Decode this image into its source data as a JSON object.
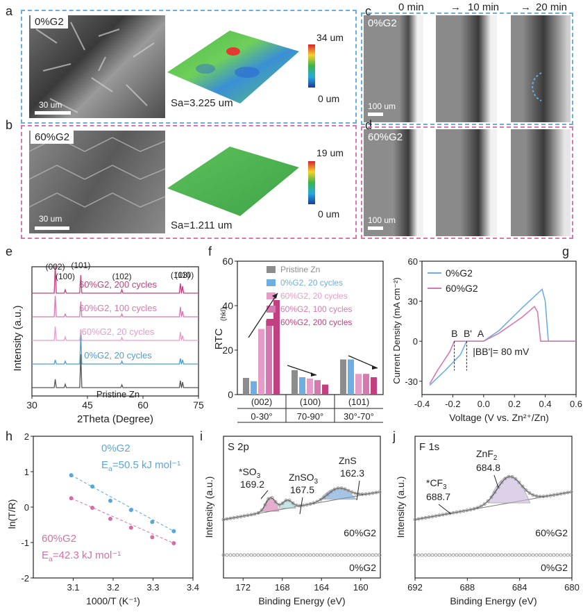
{
  "panels": {
    "a": {
      "letter": "a",
      "tag": "0%G2",
      "scale": "30 um",
      "cb_max": "34 um",
      "cb_min": "0 um",
      "sa": "Sa=3.225 um"
    },
    "b": {
      "letter": "b",
      "tag": "60%G2",
      "scale": "30 um",
      "cb_max": "19 um",
      "cb_min": "0 um",
      "sa": "Sa=1.211 um"
    },
    "c": {
      "letter": "c",
      "tag": "0%G2",
      "scale": "100 um",
      "times": [
        "0 min",
        "10 min",
        "20 min"
      ]
    },
    "d": {
      "letter": "d",
      "tag": "60%G2",
      "scale": "100 um"
    },
    "e": {
      "letter": "e"
    },
    "f": {
      "letter": "f"
    },
    "g": {
      "letter": "g"
    },
    "h": {
      "letter": "h"
    },
    "i": {
      "letter": "i"
    },
    "j": {
      "letter": "j"
    }
  },
  "colors": {
    "blue": "#4a9fd0",
    "pink": "#c85a9a",
    "lightpink": "#e59cc6",
    "magenta": "#c2407f",
    "gray": "#8c8c8c",
    "mid": "#d678b0"
  },
  "chart_data": [
    {
      "id": "e",
      "type": "line",
      "xlabel": "2Theta (Degree)",
      "ylabel": "Intensity (a.u.)",
      "xlim": [
        30,
        75
      ],
      "xticks": [
        "30",
        "45",
        "60",
        "75"
      ],
      "peaks": [
        {
          "label": "(002)",
          "x": 36.3
        },
        {
          "label": "(100)",
          "x": 39.0
        },
        {
          "label": "(101)",
          "x": 43.2
        },
        {
          "label": "(102)",
          "x": 54.3
        },
        {
          "label": "(103)",
          "x": 70.1
        },
        {
          "label": "(110)",
          "x": 70.7
        }
      ],
      "series": [
        {
          "name": "Pristine Zn",
          "color": "#555555"
        },
        {
          "name": "0%G2, 20 cycles",
          "color": "#4a9fd0"
        },
        {
          "name": "60%G2, 20 cycles",
          "color": "#e59cc6"
        },
        {
          "name": "60%G2, 100 cycles",
          "color": "#d678b0"
        },
        {
          "name": "60%G2, 200 cycles",
          "color": "#c2407f"
        }
      ]
    },
    {
      "id": "f",
      "type": "bar",
      "ylabel": "RTC",
      "ylabel_sub": "(hkl)",
      "ylim": [
        0,
        60
      ],
      "yticks": [
        "0",
        "20",
        "40",
        "60"
      ],
      "groups": [
        "(002)",
        "(100)",
        "(101)"
      ],
      "ranges": [
        "0-30°",
        "70-90°",
        "30°-70°"
      ],
      "series": [
        {
          "name": "Pristine Zn",
          "color": "#8c8c8c",
          "values": [
            7.5,
            11,
            15.8
          ]
        },
        {
          "name": "0%G2, 20 cycles",
          "color": "#6eaee0",
          "values": [
            6,
            7.8,
            15.8
          ]
        },
        {
          "name": "60%G2, 20 cycles",
          "color": "#e59cc6",
          "values": [
            29.5,
            7.2,
            9.3
          ]
        },
        {
          "name": "60%G2, 100 cycles",
          "color": "#d678b0",
          "values": [
            33.5,
            6.5,
            9.3
          ]
        },
        {
          "name": "60%G2, 200 cycles",
          "color": "#c2407f",
          "values": [
            42.5,
            4.5,
            7.8
          ]
        }
      ]
    },
    {
      "id": "g",
      "type": "line",
      "xlabel": "Voltage (V vs. Zn²⁺/Zn)",
      "ylabel": "Current Density (mA cm⁻²)",
      "xlim": [
        -0.4,
        0.6
      ],
      "ylim": [
        -40,
        60
      ],
      "xticks": [
        "-0.4",
        "-0.2",
        "0.0",
        "0.2",
        "0.4",
        "0.6"
      ],
      "yticks": [
        "-30",
        "0",
        "30",
        "60"
      ],
      "annotations": [
        "B",
        "B'",
        "A",
        "|BB'|= 80 mV"
      ],
      "series": [
        {
          "name": "0%G2",
          "color": "#6eaee0",
          "points": [
            [
              -0.35,
              -33
            ],
            [
              -0.25,
              -22
            ],
            [
              -0.15,
              -10
            ],
            [
              -0.11,
              0
            ],
            [
              0.0,
              0
            ],
            [
              0.1,
              8
            ],
            [
              0.25,
              25
            ],
            [
              0.38,
              39
            ],
            [
              0.4,
              30
            ],
            [
              0.42,
              0
            ],
            [
              0.6,
              0
            ]
          ]
        },
        {
          "name": "60%G2",
          "color": "#d678b0",
          "points": [
            [
              -0.35,
              -32
            ],
            [
              -0.3,
              -22
            ],
            [
              -0.22,
              -8
            ],
            [
              -0.19,
              0
            ],
            [
              0.0,
              0
            ],
            [
              0.1,
              6
            ],
            [
              0.25,
              18
            ],
            [
              0.33,
              26
            ],
            [
              0.35,
              22
            ],
            [
              0.37,
              0
            ],
            [
              0.6,
              0
            ]
          ]
        }
      ]
    },
    {
      "id": "h",
      "type": "scatter",
      "xlabel": "1000/T (K⁻¹)",
      "ylabel": "ln(T/R)",
      "xlim": [
        3.0,
        3.4
      ],
      "ylim": [
        -2,
        2
      ],
      "xticks": [
        "3.1",
        "3.2",
        "3.3",
        "3.4"
      ],
      "yticks": [
        "-2",
        "-1",
        "0",
        "1",
        "2"
      ],
      "series": [
        {
          "name": "0%G2",
          "ea_label": "E",
          "ea_sub": "a",
          "ea_value": "=50.5 kJ mol⁻¹",
          "color": "#5aa6d8",
          "x": [
            3.095,
            3.148,
            3.193,
            3.245,
            3.298,
            3.352
          ],
          "y": [
            0.9,
            0.58,
            0.18,
            -0.08,
            -0.42,
            -0.68
          ]
        },
        {
          "name": "60%G2",
          "ea_label": "E",
          "ea_sub": "a",
          "ea_value": "=42.3 kJ mol⁻¹",
          "color": "#d070a6",
          "x": [
            3.095,
            3.148,
            3.193,
            3.245,
            3.298,
            3.352
          ],
          "y": [
            0.25,
            -0.02,
            -0.33,
            -0.58,
            -0.85,
            -1.02
          ]
        }
      ]
    },
    {
      "id": "i",
      "type": "line",
      "title": "S 2p",
      "xlabel": "Binding Energy (eV)",
      "ylabel": "Intensity (a.u.)",
      "xlim": [
        174,
        158
      ],
      "xticks": [
        "172",
        "168",
        "164",
        "160"
      ],
      "peaks": [
        {
          "label": "*SO",
          "sub": "3",
          "value": "169.2"
        },
        {
          "label": "ZnSO",
          "sub": "3",
          "value": "167.5"
        },
        {
          "label": "ZnS",
          "value": "162.3"
        }
      ],
      "series": [
        {
          "name": "60%G2"
        },
        {
          "name": "0%G2"
        }
      ]
    },
    {
      "id": "j",
      "type": "line",
      "title": "F 1s",
      "xlabel": "Binding Energy (eV)",
      "ylabel": "Intensity (a.u.)",
      "xlim": [
        692,
        680
      ],
      "xticks": [
        "692",
        "688",
        "684",
        "680"
      ],
      "peaks": [
        {
          "label": "*CF",
          "sub": "3",
          "value": "688.7"
        },
        {
          "label": "ZnF",
          "sub": "2",
          "value": "684.8"
        }
      ],
      "series": [
        {
          "name": "60%G2"
        },
        {
          "name": "0%G2"
        }
      ]
    }
  ]
}
